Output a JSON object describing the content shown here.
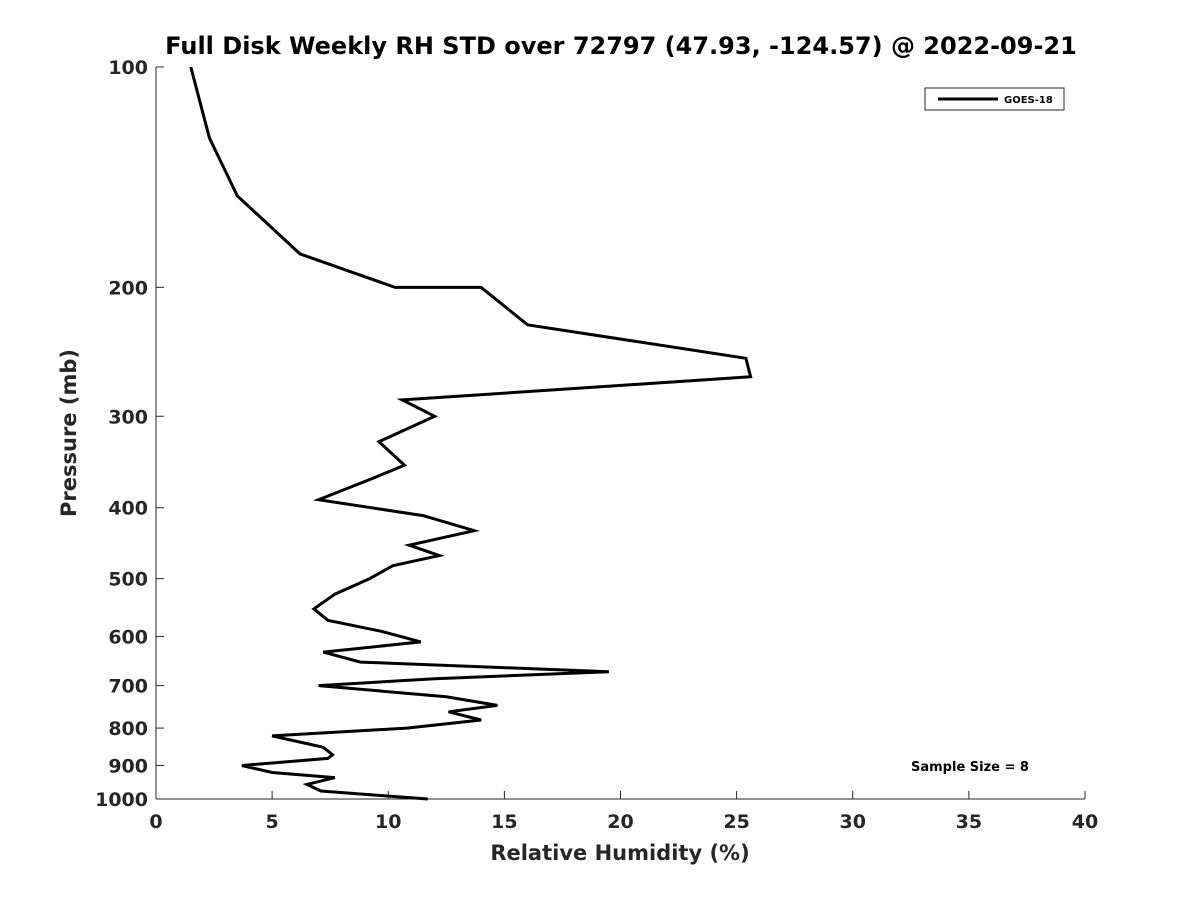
{
  "chart_data": {
    "type": "line",
    "title": "Full Disk Weekly RH STD over 72797 (47.93, -124.57) @ 2022-09-21",
    "xlabel": "Relative Humidity (%)",
    "ylabel": "Pressure (mb)",
    "xlim": [
      0,
      40
    ],
    "ylim": [
      100,
      1000
    ],
    "y_scale": "log",
    "y_reversed": true,
    "x_ticks": [
      0,
      5,
      10,
      15,
      20,
      25,
      30,
      35,
      40
    ],
    "y_ticks": [
      100,
      200,
      300,
      400,
      500,
      600,
      700,
      800,
      900,
      1000
    ],
    "grid": false,
    "legend_position": "top-right",
    "series": [
      {
        "name": "GOES-18",
        "color": "#000000",
        "points": [
          [
            1.5,
            100
          ],
          [
            2.3,
            125
          ],
          [
            3.5,
            150
          ],
          [
            6.2,
            180
          ],
          [
            10.3,
            200
          ],
          [
            14.0,
            200
          ],
          [
            16.0,
            225
          ],
          [
            25.4,
            250
          ],
          [
            25.6,
            265
          ],
          [
            10.6,
            285
          ],
          [
            12.0,
            300
          ],
          [
            9.6,
            325
          ],
          [
            10.7,
            350
          ],
          [
            9.3,
            365
          ],
          [
            7.0,
            390
          ],
          [
            11.5,
            410
          ],
          [
            13.7,
            430
          ],
          [
            10.9,
            450
          ],
          [
            12.2,
            465
          ],
          [
            10.2,
            480
          ],
          [
            9.2,
            500
          ],
          [
            7.7,
            525
          ],
          [
            6.8,
            550
          ],
          [
            7.4,
            570
          ],
          [
            9.7,
            590
          ],
          [
            11.4,
            610
          ],
          [
            7.2,
            630
          ],
          [
            8.8,
            650
          ],
          [
            19.5,
            670
          ],
          [
            12.0,
            685
          ],
          [
            7.0,
            700
          ],
          [
            12.5,
            725
          ],
          [
            14.7,
            745
          ],
          [
            12.6,
            760
          ],
          [
            14.0,
            780
          ],
          [
            10.8,
            800
          ],
          [
            5.0,
            820
          ],
          [
            7.2,
            850
          ],
          [
            7.6,
            870
          ],
          [
            7.4,
            880
          ],
          [
            3.7,
            900
          ],
          [
            5.0,
            920
          ],
          [
            7.7,
            935
          ],
          [
            6.5,
            955
          ],
          [
            7.1,
            975
          ],
          [
            11.7,
            1000
          ]
        ]
      }
    ],
    "annotation": "Sample Size = 8"
  }
}
